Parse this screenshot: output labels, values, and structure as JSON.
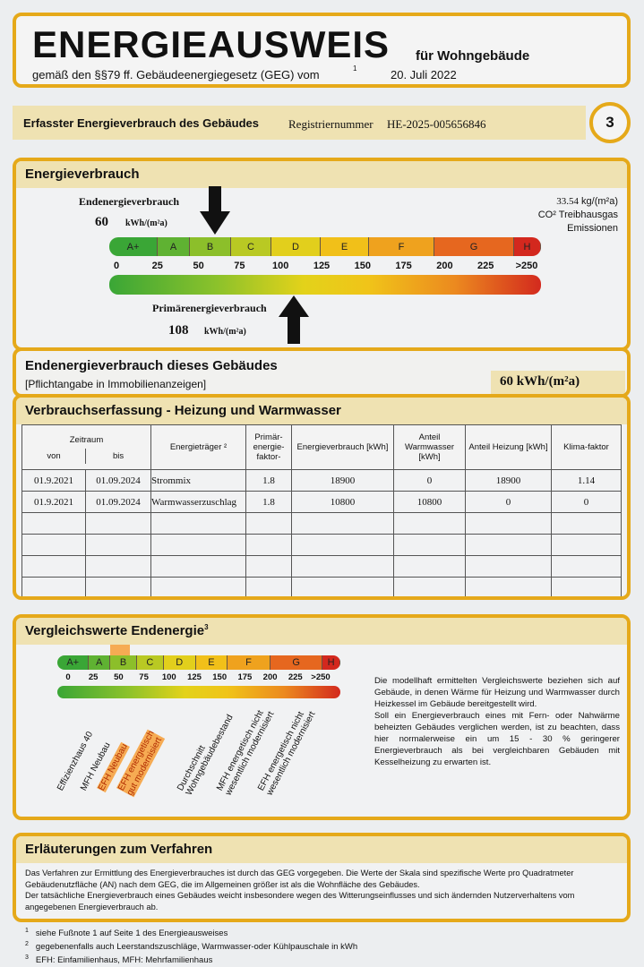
{
  "header": {
    "title": "ENERGIEAUSWEIS",
    "subtitle": "für Wohngebäude",
    "law": "gemäß den §§79 ff. Gebäudeenergiegesetz (GEG) vom",
    "footnote_mark": "1",
    "date": "20. Juli 2022"
  },
  "registry": {
    "label": "Erfasster Energieverbrauch des Gebäudes",
    "number_label": "Registriernummer",
    "number": "HE-2025-005656846",
    "page": "3"
  },
  "energy": {
    "title": "Energieverbrauch",
    "end_label": "Endenergieverbrauch",
    "end_value": "60",
    "end_value_num": 60,
    "unit": "kWh/(m²a)",
    "primary_label": "Primärenergieverbrauch",
    "primary_value": "108",
    "primary_value_num": 108,
    "co2_value": "33.54",
    "co2_unit": "kg/(m²a)",
    "co2_label": "CO² Treibhausgas",
    "co2_label2": "Emissionen",
    "classes": [
      "A+",
      "A",
      "B",
      "C",
      "D",
      "E",
      "F",
      "G",
      "H"
    ],
    "ticks": [
      "0",
      "25",
      "50",
      "75",
      "100",
      "125",
      "150",
      "175",
      "200",
      "225",
      ">250"
    ]
  },
  "end_building": {
    "title": "Endenergieverbrauch dieses Gebäudes",
    "note": "[Pflichtangabe in Immobilienanzeigen]",
    "value": "60 kWh/(m²a)"
  },
  "table": {
    "title": "Verbrauchserfassung - Heizung und Warmwasser",
    "headers": {
      "period": "Zeitraum",
      "from": "von",
      "to": "bis",
      "carrier": "Energieträger ²",
      "factor": "Primär-energie-faktor-",
      "consumption": "Energieverbrauch [kWh]",
      "water": "Anteil Warmwasser [kWh]",
      "heating": "Anteil Heizung [kWh]",
      "climate": "Klima-faktor"
    },
    "rows": [
      [
        "01.9.2021",
        "01.09.2024",
        "Strommix",
        "1.8",
        "18900",
        "0",
        "18900",
        "1.14"
      ],
      [
        "01.9.2021",
        "01.09.2024",
        "Warmwasserzuschlag",
        "1.8",
        "10800",
        "10800",
        "0",
        "0"
      ]
    ]
  },
  "compare": {
    "title": "Vergleichswerte Endenergie",
    "sup": "3",
    "highlight_class": "B",
    "labels": [
      "Effizienzhaus 40",
      "MFH Neubau",
      "EFH Neubau",
      "EFH energetisch\ngut modernisiert",
      "Durchschnitt\nWohngebäudebestand",
      "MFH energetisch nicht\nwesentlich modernisiert",
      "EFH energetisch nicht\nwesentlich modernisiert"
    ],
    "text": "Die modellhaft ermittelten Vergleichswerte beziehen sich auf Gebäude, in denen Wärme für Heizung und Warmwasser durch Heizkessel im Gebäude bereitgestellt wird.",
    "text2": "Soll ein Energieverbrauch eines mit Fern- oder Nahwärme beheizten Gebäudes verglichen werden, ist zu beachten, dass hier normalerweise ein um 15 - 30 % geringerer Energieverbrauch als bei vergleichbaren Gebäuden mit Kesselheizung zu erwarten ist."
  },
  "explain": {
    "title": "Erläuterungen zum Verfahren",
    "p1": "Das Verfahren zur Ermittlung des Energieverbrauches ist durch das GEG vorgegeben. Die Werte der Skala sind spezifische Werte pro Quadratmeter Gebäudenutzfläche (AN) nach dem GEG, die im Allgemeinen größer ist als die Wohnfläche des Gebäudes.",
    "p2": "Der tatsächliche Energieverbrauch eines Gebäudes weicht insbesondere wegen des Witterungseinflusses und sich ändernden Nutzerverhaltens vom angegebenen Energieverbrauch ab."
  },
  "footnotes": [
    {
      "mark": "1",
      "text": "siehe Fußnote 1 auf Seite 1 des Energieausweises"
    },
    {
      "mark": "2",
      "text": "gegebenenfalls auch Leerstandszuschläge, Warmwasser-oder Kühlpauschale in kWh"
    },
    {
      "mark": "3",
      "text": "EFH: Einfamilienhaus, MFH: Mehrfamilienhaus"
    }
  ],
  "colors": {
    "border": "#e5a91a",
    "header_fill": "#efe2b2",
    "highlight": "#f7931e"
  }
}
